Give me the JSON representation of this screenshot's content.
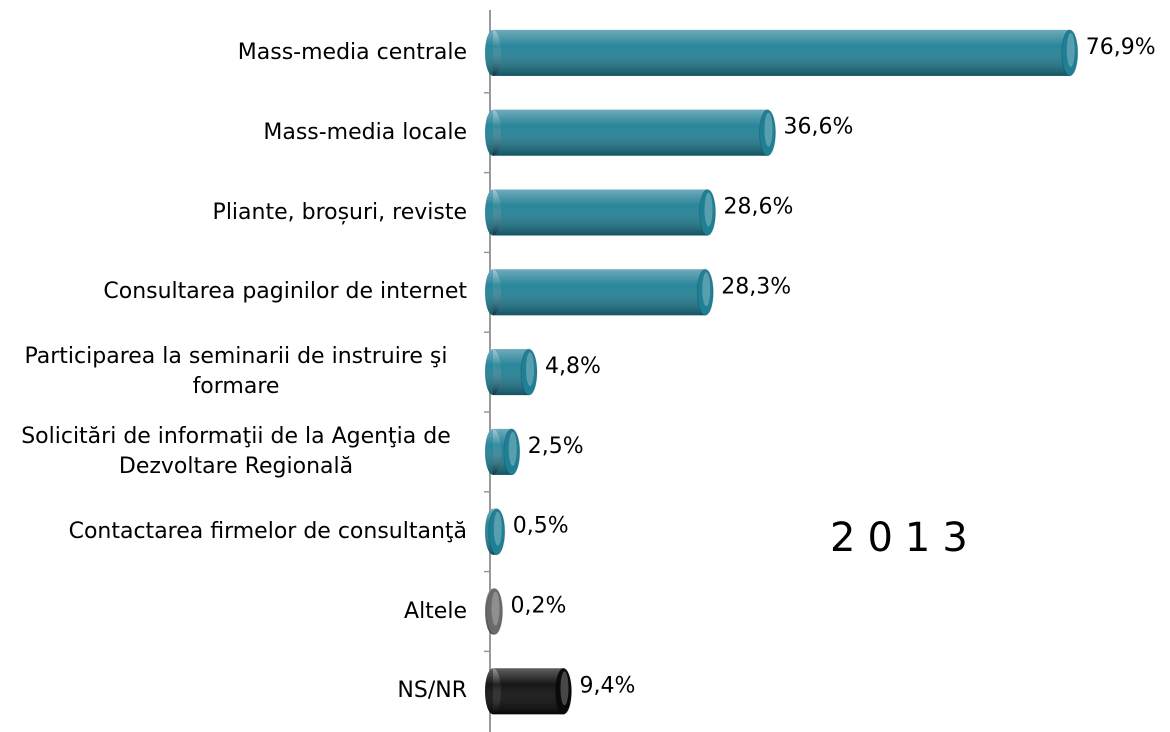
{
  "chart_data": {
    "type": "bar",
    "orientation": "horizontal",
    "categories": [
      "Mass-media centrale",
      "Mass-media locale",
      "Pliante, broșuri, reviste",
      "Consultarea paginilor de internet",
      "Participarea la seminarii de instruire şi formare",
      "Solicitări de informaţii de la Agenţia de Dezvoltare Regională",
      "Contactarea firmelor de consultanţă",
      "Altele",
      "NS/NR"
    ],
    "values": [
      76.9,
      36.6,
      28.6,
      28.3,
      4.8,
      2.5,
      0.5,
      0.2,
      9.4
    ],
    "value_labels": [
      "76,9%",
      "36,6%",
      "28,6%",
      "28,3%",
      "4,8%",
      "2,5%",
      "0,5%",
      "0,2%",
      "9,4%"
    ],
    "colors": [
      "#1f7f95",
      "#1f7f95",
      "#1f7f95",
      "#1f7f95",
      "#1f7f95",
      "#1f7f95",
      "#1f7f95",
      "#6a6a6a",
      "#0a0a0a"
    ],
    "xlim": [
      0,
      80
    ],
    "annotation": "2013"
  }
}
